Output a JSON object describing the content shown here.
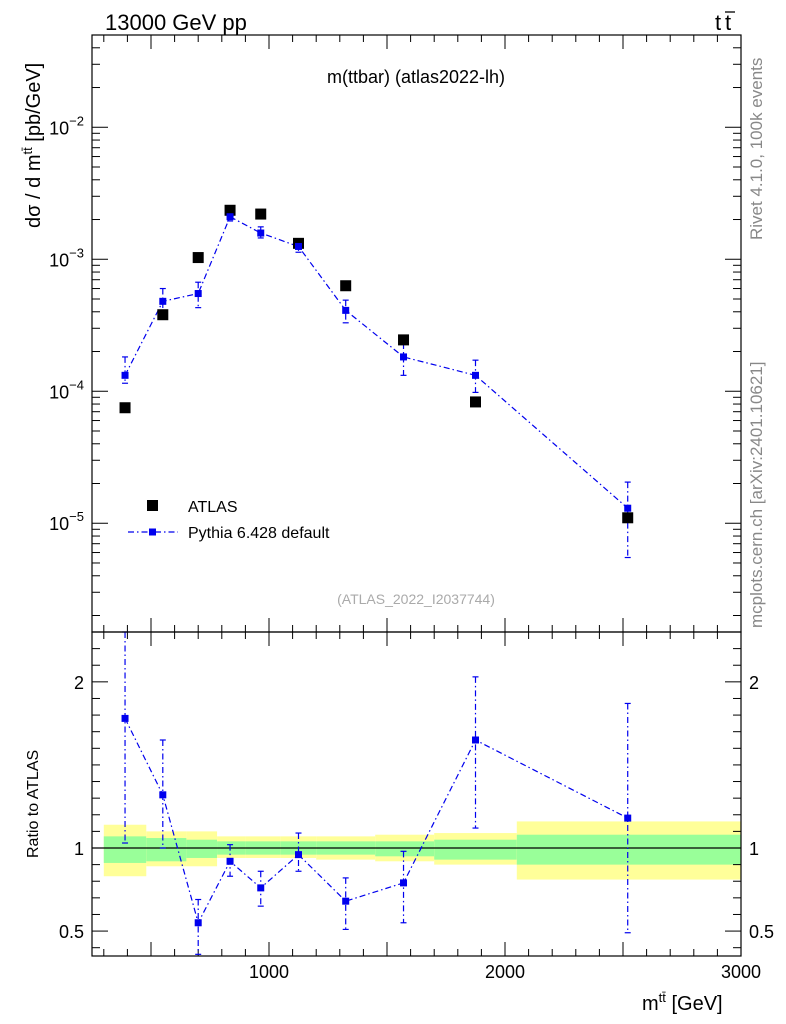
{
  "header": {
    "left": "13000 GeV pp",
    "right_base": "t",
    "right_bar": "t",
    "side_top": "Rivet 4.1.0,  100k events",
    "side_bottom": "mcplots.cern.ch [arXiv:2401.10621]"
  },
  "chart_data": {
    "type": "scatter",
    "title": "m(ttbar) (atlas2022-lh)",
    "analysis_tag": "(ATLAS_2022_I2037744)",
    "xlabel": "m^{t̄t} [GeV]",
    "ylabel": "dσ / d m^{t̄t} [pb/GeV]",
    "ratio_ylabel": "Ratio to ATLAS",
    "xlim": [
      250,
      3000
    ],
    "ylim_log": [
      1.5e-06,
      0.05
    ],
    "ratio_ylim": [
      0.35,
      2.3
    ],
    "x_ticks": [
      1000,
      2000,
      3000
    ],
    "y_tick_labels": [
      {
        "mantissa": "10",
        "exp": "−5",
        "value": 1e-05
      },
      {
        "mantissa": "10",
        "exp": "−4",
        "value": 0.0001
      },
      {
        "mantissa": "10",
        "exp": "−3",
        "value": 0.001
      },
      {
        "mantissa": "10",
        "exp": "−2",
        "value": 0.01
      }
    ],
    "ratio_ticks": [
      0.5,
      1,
      2
    ],
    "ratio_tick_labels": [
      "0.5",
      "1",
      "2"
    ],
    "legend": {
      "position": "lower-left",
      "entries": [
        "ATLAS",
        "Pythia 6.428 default"
      ]
    },
    "series": [
      {
        "name": "ATLAS",
        "color": "#000000",
        "x": [
          390,
          550,
          700,
          835,
          965,
          1125,
          1325,
          1570,
          1875,
          2520
        ],
        "y": [
          7.5e-05,
          0.00038,
          0.00103,
          0.00235,
          0.0022,
          0.00132,
          0.00063,
          0.000245,
          8.3e-05,
          1.1e-05
        ]
      },
      {
        "name": "Pythia 6.428 default",
        "color": "#0000ee",
        "x": [
          390,
          550,
          700,
          835,
          965,
          1125,
          1325,
          1570,
          1875,
          2520
        ],
        "y": [
          0.000132,
          0.00048,
          0.00055,
          0.0021,
          0.00158,
          0.00125,
          0.00041,
          0.000182,
          0.000132,
          1.3e-05
        ],
        "y_err_lo": [
          0.000115,
          0.00039,
          0.00043,
          0.00195,
          0.00145,
          0.00113,
          0.00033,
          0.000132,
          9.8e-05,
          5.5e-06
        ],
        "y_err_hi": [
          0.000182,
          0.0006,
          0.00067,
          0.0023,
          0.00176,
          0.00139,
          0.00049,
          0.000232,
          0.000172,
          2.05e-05
        ],
        "ratio": [
          1.78,
          1.32,
          0.55,
          0.92,
          0.76,
          0.96,
          0.68,
          0.79,
          1.65,
          1.18
        ],
        "ratio_lo": [
          1.03,
          1.0,
          0.36,
          0.83,
          0.65,
          0.86,
          0.51,
          0.55,
          1.12,
          0.49
        ],
        "ratio_hi": [
          2.3,
          1.65,
          0.69,
          1.02,
          0.86,
          1.09,
          0.82,
          0.98,
          2.03,
          1.87
        ]
      }
    ],
    "uncertainty_bands": {
      "bin_edges": [
        300,
        480,
        650,
        780,
        900,
        1050,
        1200,
        1450,
        1700,
        2050,
        3000
      ],
      "inner_lo": [
        0.91,
        0.92,
        0.94,
        0.96,
        0.96,
        0.96,
        0.96,
        0.95,
        0.93,
        0.9
      ],
      "inner_hi": [
        1.07,
        1.06,
        1.05,
        1.04,
        1.04,
        1.04,
        1.04,
        1.04,
        1.05,
        1.08
      ],
      "outer_lo": [
        0.83,
        0.89,
        0.89,
        0.94,
        0.94,
        0.94,
        0.93,
        0.92,
        0.9,
        0.81
      ],
      "outer_hi": [
        1.14,
        1.1,
        1.1,
        1.07,
        1.07,
        1.07,
        1.07,
        1.08,
        1.09,
        1.16
      ],
      "inner_color": "#99ff99",
      "outer_color": "#ffff99"
    }
  }
}
